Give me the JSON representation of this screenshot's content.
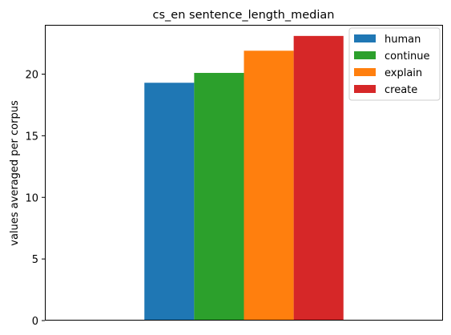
{
  "chart_data": {
    "type": "bar",
    "title": "cs_en sentence_length_median",
    "xlabel": "",
    "ylabel": "values averaged per corpus",
    "ylim": [
      0,
      24
    ],
    "yticks": [
      0,
      5,
      10,
      15,
      20
    ],
    "grid": false,
    "legend_position": "top-right",
    "categories": [
      ""
    ],
    "series": [
      {
        "name": "human",
        "values": [
          19.3
        ],
        "color": "#1f77b4"
      },
      {
        "name": "continue",
        "values": [
          20.1
        ],
        "color": "#2ca02c"
      },
      {
        "name": "explain",
        "values": [
          21.9
        ],
        "color": "#ff7f0e"
      },
      {
        "name": "create",
        "values": [
          23.1
        ],
        "color": "#d62728"
      }
    ]
  }
}
